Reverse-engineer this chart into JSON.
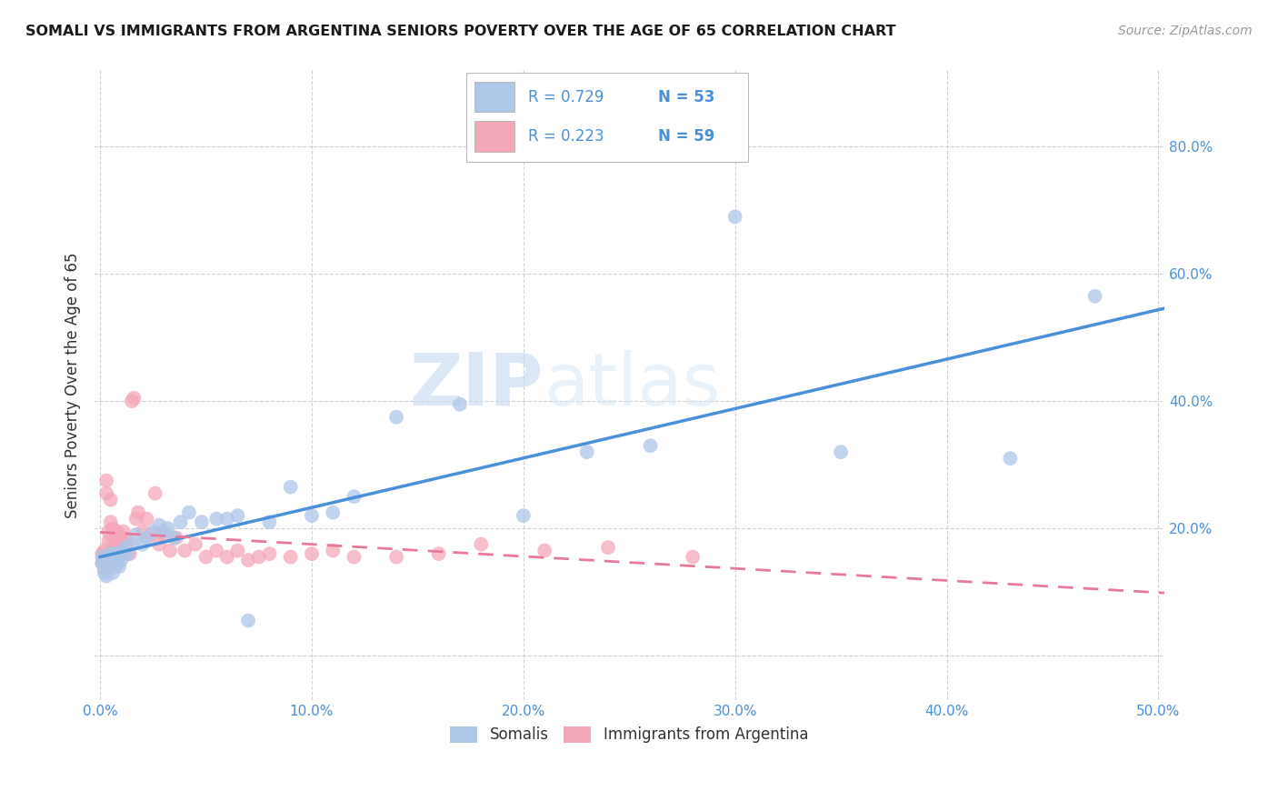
{
  "title": "SOMALI VS IMMIGRANTS FROM ARGENTINA SENIORS POVERTY OVER THE AGE OF 65 CORRELATION CHART",
  "source": "Source: ZipAtlas.com",
  "ylabel": "Seniors Poverty Over the Age of 65",
  "xlim": [
    -0.003,
    0.503
  ],
  "ylim": [
    -0.07,
    0.92
  ],
  "xticks": [
    0.0,
    0.1,
    0.2,
    0.3,
    0.4,
    0.5
  ],
  "yticks": [
    0.0,
    0.2,
    0.4,
    0.6,
    0.8
  ],
  "xtick_labels": [
    "0.0%",
    "10.0%",
    "20.0%",
    "30.0%",
    "40.0%",
    "50.0%"
  ],
  "ytick_labels": [
    "",
    "20.0%",
    "40.0%",
    "60.0%",
    "80.0%"
  ],
  "somali_color": "#aec6e8",
  "argentina_color": "#f4a7b9",
  "somali_line_color": "#4a90d9",
  "argentina_line_color": "#e8799a",
  "somali_R": "0.729",
  "somali_N": "53",
  "argentina_R": "0.223",
  "argentina_N": "59",
  "legend_label_somali": "Somalis",
  "legend_label_argentina": "Immigrants from Argentina",
  "watermark_zip": "ZIP",
  "watermark_atlas": "atlas",
  "somali_x": [
    0.001,
    0.001,
    0.002,
    0.002,
    0.003,
    0.003,
    0.004,
    0.004,
    0.005,
    0.005,
    0.006,
    0.006,
    0.007,
    0.007,
    0.008,
    0.008,
    0.009,
    0.009,
    0.01,
    0.01,
    0.011,
    0.012,
    0.013,
    0.015,
    0.017,
    0.02,
    0.022,
    0.025,
    0.028,
    0.03,
    0.032,
    0.035,
    0.038,
    0.042,
    0.048,
    0.055,
    0.06,
    0.065,
    0.07,
    0.08,
    0.09,
    0.1,
    0.11,
    0.12,
    0.14,
    0.17,
    0.2,
    0.23,
    0.26,
    0.3,
    0.35,
    0.43,
    0.47
  ],
  "somali_y": [
    0.145,
    0.155,
    0.13,
    0.15,
    0.125,
    0.14,
    0.135,
    0.155,
    0.145,
    0.16,
    0.13,
    0.145,
    0.14,
    0.16,
    0.145,
    0.16,
    0.14,
    0.155,
    0.15,
    0.16,
    0.165,
    0.17,
    0.16,
    0.175,
    0.19,
    0.175,
    0.185,
    0.195,
    0.205,
    0.195,
    0.2,
    0.185,
    0.21,
    0.225,
    0.21,
    0.215,
    0.215,
    0.22,
    0.055,
    0.21,
    0.265,
    0.22,
    0.225,
    0.25,
    0.375,
    0.395,
    0.22,
    0.32,
    0.33,
    0.69,
    0.32,
    0.31,
    0.565
  ],
  "argentina_x": [
    0.001,
    0.001,
    0.002,
    0.002,
    0.003,
    0.003,
    0.003,
    0.004,
    0.004,
    0.005,
    0.005,
    0.005,
    0.006,
    0.006,
    0.006,
    0.007,
    0.007,
    0.008,
    0.008,
    0.009,
    0.009,
    0.01,
    0.01,
    0.011,
    0.011,
    0.012,
    0.013,
    0.014,
    0.015,
    0.016,
    0.017,
    0.018,
    0.02,
    0.022,
    0.024,
    0.026,
    0.028,
    0.03,
    0.033,
    0.036,
    0.04,
    0.045,
    0.05,
    0.055,
    0.06,
    0.065,
    0.07,
    0.075,
    0.08,
    0.09,
    0.1,
    0.11,
    0.12,
    0.14,
    0.16,
    0.18,
    0.21,
    0.24,
    0.28
  ],
  "argentina_y": [
    0.145,
    0.16,
    0.135,
    0.165,
    0.155,
    0.255,
    0.275,
    0.18,
    0.195,
    0.21,
    0.245,
    0.145,
    0.165,
    0.18,
    0.2,
    0.155,
    0.175,
    0.195,
    0.155,
    0.17,
    0.19,
    0.16,
    0.175,
    0.165,
    0.195,
    0.185,
    0.175,
    0.16,
    0.4,
    0.405,
    0.215,
    0.225,
    0.195,
    0.215,
    0.19,
    0.255,
    0.175,
    0.19,
    0.165,
    0.185,
    0.165,
    0.175,
    0.155,
    0.165,
    0.155,
    0.165,
    0.15,
    0.155,
    0.16,
    0.155,
    0.16,
    0.165,
    0.155,
    0.155,
    0.16,
    0.175,
    0.165,
    0.17,
    0.155
  ]
}
